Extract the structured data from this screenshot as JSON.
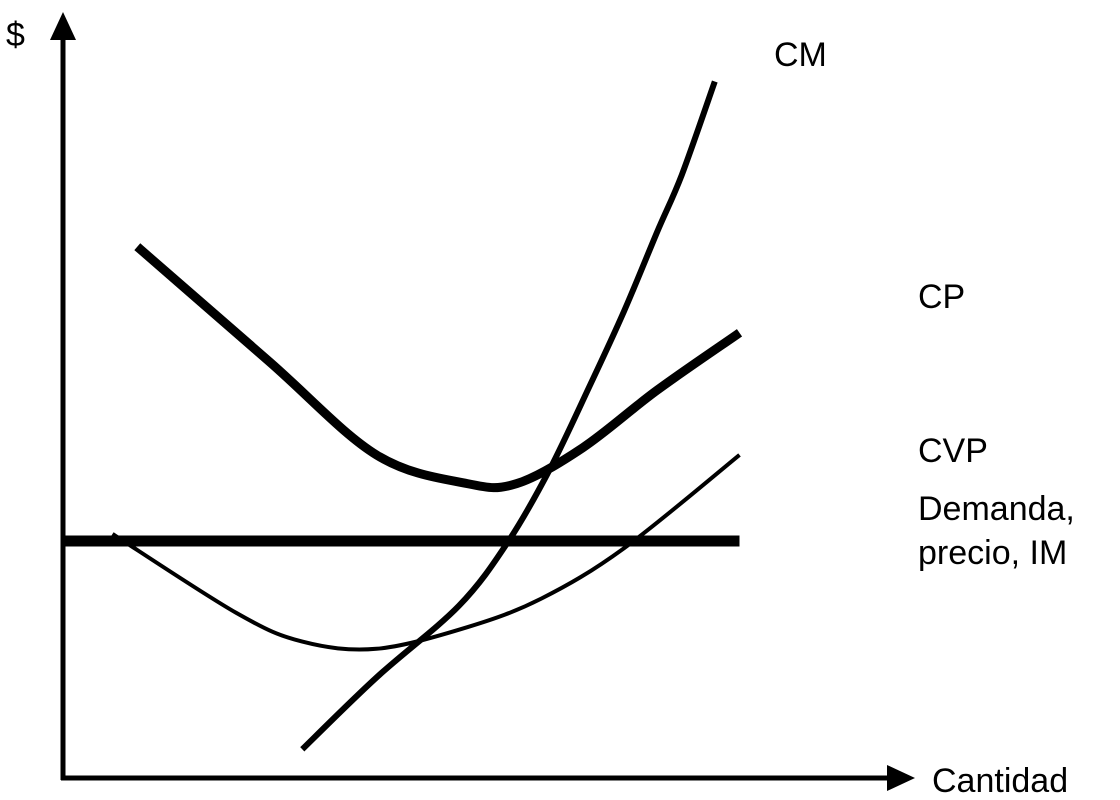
{
  "chart_data": {
    "type": "line",
    "title": "",
    "xlabel": "Cantidad",
    "ylabel": "$",
    "grid": false,
    "ticks": false,
    "series": [
      {
        "name": "CM",
        "points": [
          [
            29,
            4
          ],
          [
            38,
            14
          ],
          [
            48,
            24
          ],
          [
            54,
            33
          ],
          [
            59,
            43
          ],
          [
            64,
            55
          ],
          [
            68,
            65
          ],
          [
            72,
            76
          ],
          [
            75,
            84
          ],
          [
            79,
            97
          ]
        ]
      },
      {
        "name": "CP",
        "points": [
          [
            9,
            74
          ],
          [
            25,
            58
          ],
          [
            38,
            45
          ],
          [
            49,
            41
          ],
          [
            55,
            41
          ],
          [
            63,
            46
          ],
          [
            72,
            54
          ],
          [
            82,
            62
          ]
        ]
      },
      {
        "name": "CVP",
        "points": [
          [
            6,
            34
          ],
          [
            21,
            23
          ],
          [
            29,
            19
          ],
          [
            38,
            18
          ],
          [
            49,
            21
          ],
          [
            58,
            25
          ],
          [
            68,
            32
          ],
          [
            82,
            45
          ]
        ]
      },
      {
        "name": "Demanda, precio, IM",
        "points": [
          [
            0,
            33
          ],
          [
            82,
            33
          ]
        ]
      }
    ]
  }
}
